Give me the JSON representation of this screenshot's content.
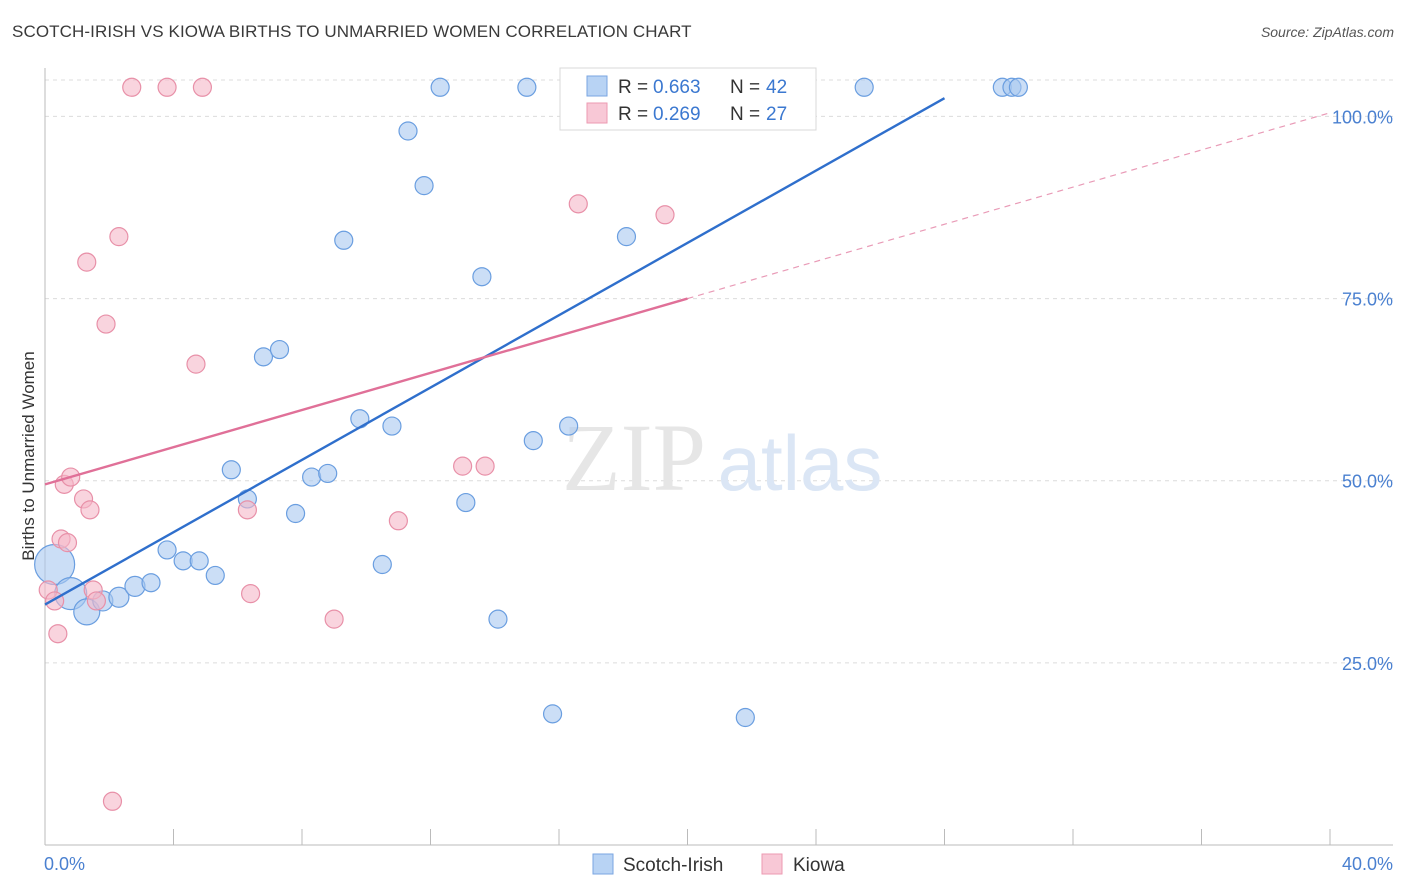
{
  "header": {
    "title": "SCOTCH-IRISH VS KIOWA BIRTHS TO UNMARRIED WOMEN CORRELATION CHART",
    "source": "Source: ZipAtlas.com"
  },
  "watermark": {
    "zip": "ZIP",
    "atlas": "atlas"
  },
  "legend": {
    "r_label": "R =",
    "n_label": "N =",
    "rows": [
      {
        "r": "0.663",
        "n": "42",
        "color": "#a8c8f0"
      },
      {
        "r": "0.269",
        "n": "27",
        "color": "#f5b8c8"
      }
    ]
  },
  "chart_data": {
    "type": "scatter",
    "title": "SCOTCH-IRISH VS KIOWA BIRTHS TO UNMARRIED WOMEN CORRELATION CHART",
    "ylabel": "Births to Unmarried Women",
    "xlabel": "",
    "xlim": [
      0,
      40
    ],
    "ylim": [
      0,
      105
    ],
    "x_tick_labels": [
      "0.0%",
      "40.0%"
    ],
    "y_ticks": [
      25,
      50,
      75,
      100
    ],
    "y_tick_labels": [
      "25.0%",
      "50.0%",
      "75.0%",
      "100.0%"
    ],
    "grid": "horizontal dashed",
    "legend_position": "top-center",
    "series": [
      {
        "name": "Scotch-Irish",
        "color": "#a8c8f0",
        "stroke": "#6a9ee0",
        "line_color": "#2f6fcc",
        "trend": {
          "x1": 0,
          "y1": 33,
          "x2": 28,
          "y2": 102.5,
          "dashed_to": null
        },
        "points": [
          [
            0.3,
            38.5,
            20
          ],
          [
            0.8,
            34.5,
            16
          ],
          [
            1.3,
            32,
            13
          ],
          [
            1.8,
            33.5,
            10
          ],
          [
            2.3,
            34,
            10
          ],
          [
            2.8,
            35.5,
            10
          ],
          [
            3.3,
            36,
            9
          ],
          [
            3.8,
            40.5,
            9
          ],
          [
            4.3,
            39,
            9
          ],
          [
            4.8,
            39,
            9
          ],
          [
            5.3,
            37,
            9
          ],
          [
            5.8,
            51.5,
            9
          ],
          [
            6.3,
            47.5,
            9
          ],
          [
            6.8,
            67,
            9
          ],
          [
            7.3,
            68,
            9
          ],
          [
            7.8,
            45.5,
            9
          ],
          [
            8.3,
            50.5,
            9
          ],
          [
            8.8,
            51,
            9
          ],
          [
            9.3,
            83,
            9
          ],
          [
            9.8,
            58.5,
            9
          ],
          [
            10.5,
            38.5,
            9
          ],
          [
            10.8,
            57.5,
            9
          ],
          [
            11.3,
            98,
            9
          ],
          [
            11.8,
            90.5,
            9
          ],
          [
            12.3,
            104,
            9
          ],
          [
            13.1,
            47,
            9
          ],
          [
            13.6,
            78,
            9
          ],
          [
            14.1,
            31,
            9
          ],
          [
            15,
            104,
            9
          ],
          [
            15.2,
            55.5,
            9
          ],
          [
            15.8,
            18,
            9
          ],
          [
            16.3,
            57.5,
            9
          ],
          [
            18.1,
            83.5,
            9
          ],
          [
            19,
            104,
            9
          ],
          [
            19.5,
            104,
            9
          ],
          [
            21.5,
            104,
            9
          ],
          [
            21.8,
            17.5,
            9
          ],
          [
            22.1,
            104,
            9
          ],
          [
            25.5,
            104,
            9
          ],
          [
            29.8,
            104,
            9
          ],
          [
            30.1,
            104,
            9
          ],
          [
            30.3,
            104,
            9
          ]
        ]
      },
      {
        "name": "Kiowa",
        "color": "#f5b8c8",
        "stroke": "#e890a8",
        "line_color": "#e07098",
        "trend": {
          "x1": 0,
          "y1": 49.5,
          "x2": 20,
          "y2": 75,
          "dashed_to": {
            "x": 40,
            "y": 100.5
          }
        },
        "points": [
          [
            0.1,
            35,
            9
          ],
          [
            0.3,
            33.5,
            9
          ],
          [
            0.4,
            29,
            9
          ],
          [
            0.5,
            42,
            9
          ],
          [
            0.6,
            49.5,
            9
          ],
          [
            0.7,
            41.5,
            9
          ],
          [
            0.8,
            50.5,
            9
          ],
          [
            1.2,
            47.5,
            9
          ],
          [
            1.3,
            80,
            9
          ],
          [
            1.4,
            46,
            9
          ],
          [
            1.5,
            35,
            9
          ],
          [
            1.6,
            33.5,
            9
          ],
          [
            1.9,
            71.5,
            9
          ],
          [
            2.1,
            6,
            9
          ],
          [
            2.3,
            83.5,
            9
          ],
          [
            2.7,
            104,
            9
          ],
          [
            3.8,
            104,
            9
          ],
          [
            4.7,
            66,
            9
          ],
          [
            4.9,
            104,
            9
          ],
          [
            6.3,
            46,
            9
          ],
          [
            6.4,
            34.5,
            9
          ],
          [
            9,
            31,
            9
          ],
          [
            11,
            44.5,
            9
          ],
          [
            13,
            52,
            9
          ],
          [
            13.7,
            52,
            9
          ],
          [
            16.6,
            88,
            9
          ],
          [
            19.3,
            86.5,
            9
          ]
        ]
      }
    ]
  }
}
